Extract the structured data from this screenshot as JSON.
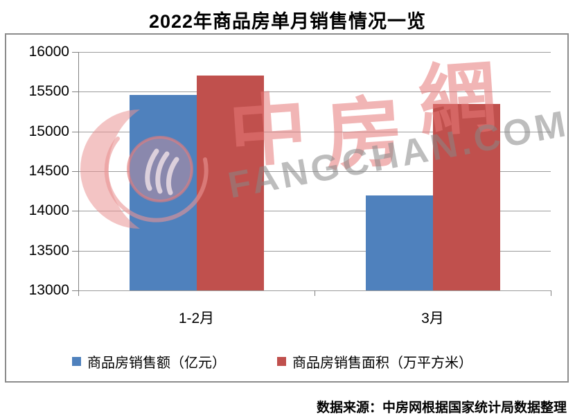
{
  "title": "2022年商品房单月销售情况一览",
  "source_note": "数据来源：中房网根据国家统计局数据整理",
  "watermark": {
    "cjk_text": "中房網",
    "latin_text": "FANGCHAN.COM",
    "logo_name": "zhongfangwang-logo",
    "pink": "#e57878",
    "gray": "#878787"
  },
  "colors": {
    "series_blue": "#4F81BD",
    "series_red": "#C0504D",
    "gridline": "#9b9b9b",
    "frame_border": "#8c8c8c"
  },
  "chart_data": {
    "type": "bar",
    "categories": [
      "1-2月",
      "3月"
    ],
    "series": [
      {
        "name": "商品房销售额（亿元）",
        "color": "#4F81BD",
        "values": [
          15459,
          14196
        ]
      },
      {
        "name": "商品房销售面积（万平方米）",
        "color": "#C0504D",
        "values": [
          15703,
          15343
        ]
      }
    ],
    "title": "2022年商品房单月销售情况一览",
    "xlabel": "",
    "ylabel": "",
    "ylim": [
      13000,
      16000
    ],
    "yticks": [
      16000,
      15500,
      15000,
      14500,
      14000,
      13500,
      13000
    ],
    "grid": true,
    "legend_position": "bottom"
  }
}
